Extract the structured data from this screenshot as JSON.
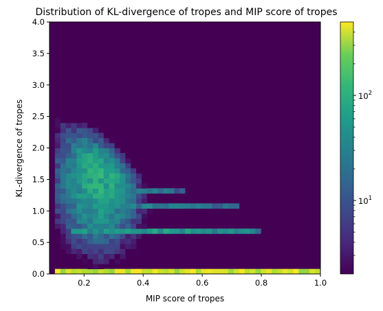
{
  "chart_data": {
    "type": "heatmap",
    "title": "Distribution of KL-divergence of tropes and MIP score of tropes",
    "xlabel": "MIP score of tropes",
    "ylabel": "KL-divergence of tropes",
    "xlim": [
      0.083,
      1.0
    ],
    "ylim": [
      0.0,
      4.0
    ],
    "x_ticks": [
      "0.2",
      "0.4",
      "0.6",
      "0.8",
      "1.0"
    ],
    "x_tick_values": [
      0.2,
      0.4,
      0.6,
      0.8,
      1.0
    ],
    "y_ticks": [
      "0.0",
      "0.5",
      "1.0",
      "1.5",
      "2.0",
      "2.5",
      "3.0",
      "3.5",
      "4.0"
    ],
    "y_tick_values": [
      0.0,
      0.5,
      1.0,
      1.5,
      2.0,
      2.5,
      3.0,
      3.5,
      4.0
    ],
    "bins": {
      "x": 50,
      "y": 50
    },
    "colormap": "viridis",
    "color_scale": "log",
    "color_range": [
      2,
      500
    ],
    "colorbar_ticks": [
      {
        "base": "10",
        "exp": "1",
        "value": 10
      },
      {
        "base": "10",
        "exp": "2",
        "value": 100
      }
    ],
    "background_color": "#440154",
    "features": [
      {
        "description": "main dense region",
        "mip_center": 0.25,
        "kl_center": 1.5,
        "peak_count": 60
      },
      {
        "description": "horizontal band",
        "mip_range": [
          0.15,
          0.8
        ],
        "kl": 0.7,
        "count": 40
      },
      {
        "description": "horizontal band",
        "mip_range": [
          0.15,
          0.72
        ],
        "kl": 1.05,
        "count": 25
      },
      {
        "description": "horizontal band",
        "mip_range": [
          0.15,
          0.55
        ],
        "kl": 1.35,
        "count": 20
      },
      {
        "description": "bottom row",
        "mip_range": [
          0.1,
          1.0
        ],
        "kl": 0.0,
        "count": 400
      }
    ]
  }
}
